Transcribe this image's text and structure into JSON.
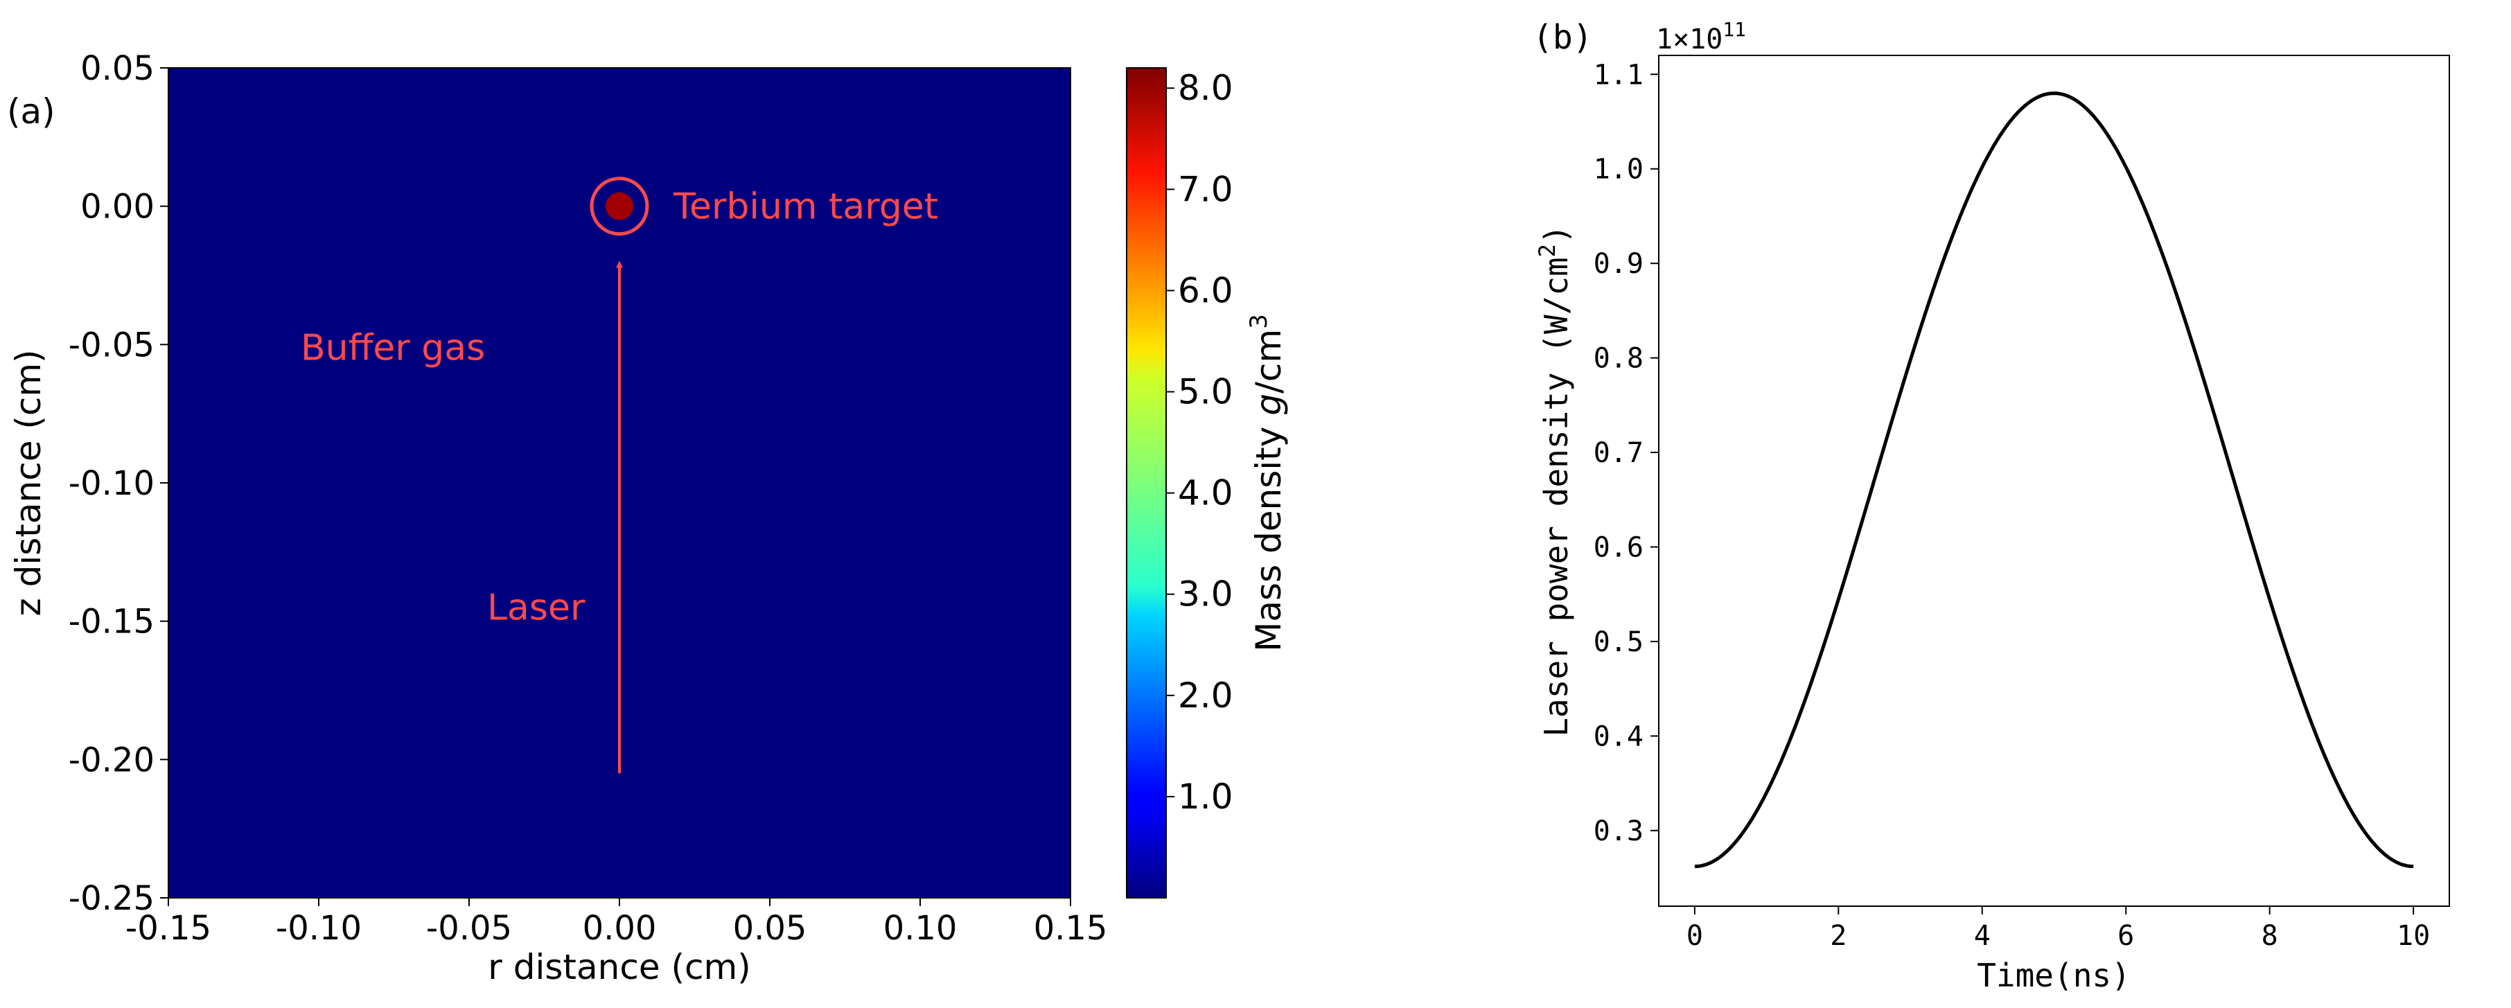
{
  "chart_data": [
    {
      "type": "heatmap",
      "panel_label": "(a)",
      "xlabel": "r distance (cm)",
      "ylabel": "z distance (cm)",
      "xlim": [
        -0.15,
        0.15
      ],
      "ylim": [
        -0.25,
        0.05
      ],
      "xticks": [
        -0.15,
        -0.1,
        -0.05,
        0.0,
        0.05,
        0.1,
        0.15
      ],
      "yticks": [
        0.05,
        0.0,
        -0.05,
        -0.1,
        -0.15,
        -0.2,
        -0.25
      ],
      "background_density": 0.0,
      "background_color": "#00007f",
      "target": {
        "r": 0.0,
        "z": 0.0,
        "density": 8.2,
        "color": "#a00000",
        "ring_color": "#ff4a4a"
      },
      "laser": {
        "r": 0.0,
        "z_start": -0.205,
        "z_end": -0.014,
        "color": "#ff4a4a"
      },
      "annotations": [
        {
          "text": "Terbium target",
          "r": 0.018,
          "z": 0.0
        },
        {
          "text": "Buffer gas",
          "r": -0.106,
          "z": -0.051
        },
        {
          "text": "Laser",
          "r": -0.044,
          "z": -0.145
        }
      ],
      "annotation_color": "#ff4a4a",
      "colorbar": {
        "label": "Mass density g/cm³",
        "label_plain": "Mass density ",
        "label_italic": "g",
        "label_unit": "/cm",
        "label_sup": "3",
        "vmin": 0.0,
        "vmax": 8.2,
        "ticks": [
          1.0,
          2.0,
          3.0,
          4.0,
          5.0,
          6.0,
          7.0,
          8.0
        ],
        "colormap": "jet"
      }
    },
    {
      "type": "line",
      "panel_label": "(b)",
      "xlabel": "Time(ns)",
      "ylabel_plain": "Laser power density (W/cm",
      "ylabel_sup": "2",
      "ylabel_end": ")",
      "offset_text": "1×10",
      "offset_exp": "11",
      "xlim": [
        -0.5,
        10.5
      ],
      "ylim": [
        0.22,
        1.12
      ],
      "xticks": [
        0,
        2,
        4,
        6,
        8,
        10
      ],
      "yticks": [
        0.3,
        0.4,
        0.5,
        0.6,
        0.7,
        0.8,
        0.9,
        1.0,
        1.1
      ],
      "grid": false,
      "line_color": "#000000",
      "series": [
        {
          "x": [
            0,
            0.5,
            1,
            1.5,
            2,
            2.5,
            3,
            3.5,
            4,
            4.5,
            5,
            5.5,
            6,
            6.5,
            7,
            7.5,
            8,
            8.5,
            9,
            9.5,
            10
          ],
          "values": [
            0.262,
            0.34,
            0.429,
            0.525,
            0.624,
            0.723,
            0.816,
            0.899,
            0.969,
            1.024,
            1.08,
            1.024,
            0.969,
            0.899,
            0.816,
            0.723,
            0.624,
            0.525,
            0.429,
            0.34,
            0.262
          ]
        }
      ]
    }
  ]
}
